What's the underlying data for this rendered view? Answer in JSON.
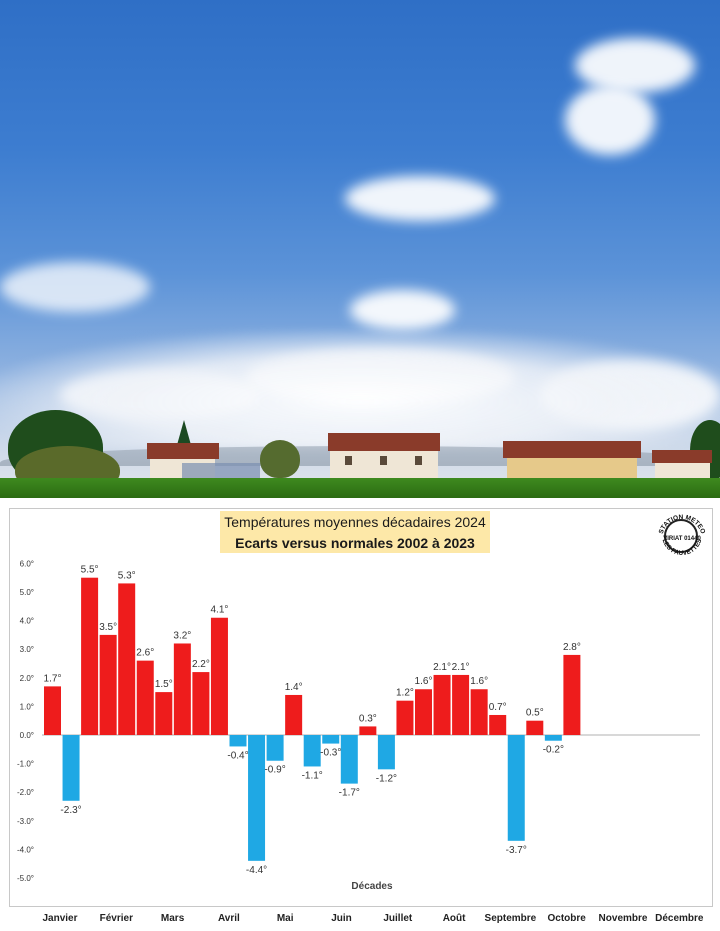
{
  "photo": {
    "description_icon": "landscape-photo-icon"
  },
  "chart_data": {
    "type": "bar",
    "title": "Températures moyennes décadaires 2024",
    "subtitle": "Ecarts versus normales 2002 à 2023",
    "xlabel": "Décades",
    "ylabel": "",
    "ylim": [
      -5,
      6
    ],
    "yticks": [
      "6.0°",
      "5.0°",
      "4.0°",
      "3.0°",
      "2.0°",
      "1.0°",
      "0.0°",
      "-1.0°",
      "-2.0°",
      "-3.0°",
      "-4.0°",
      "-5.0°"
    ],
    "grid": false,
    "colors": {
      "positive": "#ee1c1c",
      "negative": "#1fa8e4"
    },
    "months": [
      "Janvier",
      "Février",
      "Mars",
      "Avril",
      "Mai",
      "Juin",
      "Juillet",
      "Août",
      "Septembre",
      "Octobre",
      "Novembre",
      "Décembre"
    ],
    "values": [
      1.7,
      -2.3,
      5.5,
      3.5,
      5.3,
      2.6,
      1.5,
      3.2,
      2.2,
      4.1,
      -0.4,
      -4.4,
      -0.9,
      1.4,
      -1.1,
      -0.3,
      -1.7,
      0.3,
      -1.2,
      1.2,
      1.6,
      2.1,
      2.1,
      1.6,
      0.7,
      -3.7,
      0.5,
      -0.2,
      2.8
    ],
    "labels": [
      "1.7°",
      "-2.3°",
      "5.5°",
      "3.5°",
      "5.3°",
      "2.6°",
      "1.5°",
      "3.2°",
      "2.2°",
      "4.1°",
      "-0.4°",
      "-4.4°",
      "-0.9°",
      "1.4°",
      "-1.1°",
      "-0.3°",
      "-1.7°",
      "0.3°",
      "-1.2°",
      "1.2°",
      "1.6°",
      "2.1°",
      "2.1°",
      "1.6°",
      "0.7°",
      "-3.7°",
      "0.5°",
      "-0.2°",
      "2.8°"
    ]
  },
  "stamp": {
    "lines": [
      "STATION METEO",
      "VIRIAT 01440",
      "LES FAUVETTES"
    ]
  }
}
